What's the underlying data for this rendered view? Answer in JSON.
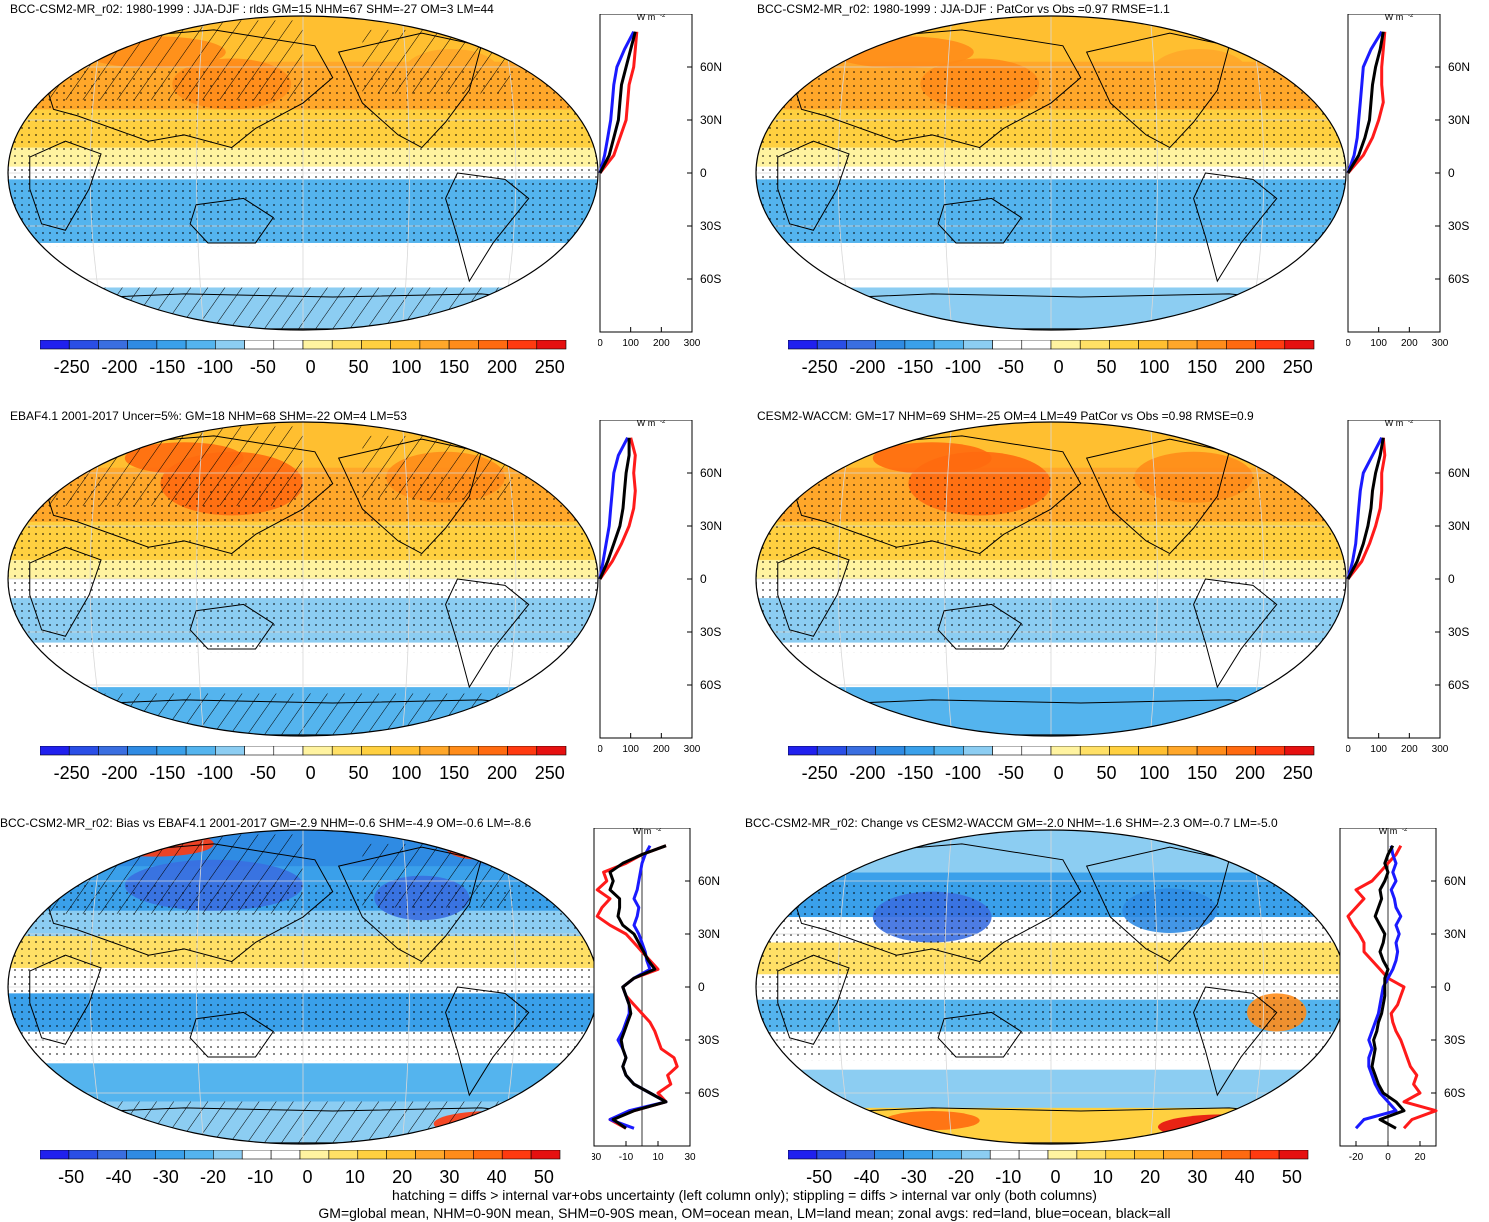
{
  "footnotes": [
    "hatching = diffs > internal var+obs uncertainty (left column only); stippling = diffs > internal var only (both columns)",
    "GM=global mean, NHM=0-90N mean, SHM=0-90S mean, OM=ocean mean, LM=land mean; zonal avgs: red=land, blue=ocean, black=all"
  ],
  "colors": {
    "land": "#ff1a1a",
    "ocean": "#1a1aff",
    "all": "#000000",
    "palette": [
      "#2020ee",
      "#2a4ee6",
      "#3a6ee0",
      "#2f8be3",
      "#3aa0ea",
      "#54b4ee",
      "#8ccdf2",
      "#ffffff",
      "#ffffff",
      "#fff3a0",
      "#ffe066",
      "#ffd040",
      "#ffbf30",
      "#ffa72a",
      "#ff8c1a",
      "#ff6a10",
      "#ff3a10",
      "#e61010"
    ]
  },
  "panels": [
    {
      "id": "p1",
      "title": "BCC-CSM2-MR_r02: 1980-1999 : JJA-DJF : rlds GM=15 NHM=67 SHM=-27 OM=3 LM=44",
      "mean_type": "mean",
      "hatch": true,
      "style": "model",
      "unit_label": "W m",
      "colorbar_labels": [
        "-250",
        "-200",
        "-150",
        "-100",
        "-50",
        "0",
        "50",
        "100",
        "150",
        "200",
        "250"
      ],
      "chart_data": {
        "type": "line",
        "xlim": [
          0,
          300
        ],
        "xticks": [
          "0",
          "100",
          "200",
          "300"
        ],
        "ylim": [
          -90,
          90
        ],
        "yticks": [
          "60N",
          "30N",
          "0",
          "30S",
          "60S"
        ],
        "series": [
          {
            "name": "land",
            "lat": [
              0,
              10,
              20,
              30,
              40,
              50,
              60,
              70,
              80
            ],
            "values": [
              0,
              45,
              65,
              85,
              90,
              95,
              110,
              115,
              120
            ]
          },
          {
            "name": "ocean",
            "lat": [
              0,
              10,
              20,
              30,
              40,
              50,
              60,
              70,
              80
            ],
            "values": [
              0,
              15,
              25,
              35,
              40,
              45,
              55,
              80,
              110
            ]
          },
          {
            "name": "all",
            "lat": [
              0,
              10,
              20,
              30,
              40,
              50,
              60,
              70,
              80
            ],
            "values": [
              0,
              30,
              45,
              60,
              65,
              70,
              85,
              100,
              115
            ]
          }
        ]
      }
    },
    {
      "id": "p2",
      "title": "BCC-CSM2-MR_r02: 1980-1999 : JJA-DJF : PatCor vs Obs =0.97 RMSE=1.1",
      "mean_type": "mean",
      "hatch": false,
      "style": "model",
      "unit_label": "W m",
      "colorbar_labels": [
        "-250",
        "-200",
        "-150",
        "-100",
        "-50",
        "0",
        "50",
        "100",
        "150",
        "200",
        "250"
      ],
      "chart_data": {
        "type": "line",
        "xlim": [
          0,
          300
        ],
        "xticks": [
          "0",
          "100",
          "200",
          "300"
        ],
        "ylim": [
          -90,
          90
        ],
        "yticks": [
          "60N",
          "30N",
          "0",
          "30S",
          "60S"
        ],
        "series": [
          {
            "name": "land",
            "lat": [
              0,
              10,
              20,
              30,
              40,
              50,
              60,
              70,
              80
            ],
            "values": [
              0,
              50,
              80,
              100,
              115,
              110,
              110,
              115,
              120
            ]
          },
          {
            "name": "ocean",
            "lat": [
              0,
              10,
              20,
              30,
              40,
              50,
              60,
              70,
              80
            ],
            "values": [
              0,
              20,
              30,
              35,
              40,
              45,
              50,
              75,
              110
            ]
          },
          {
            "name": "all",
            "lat": [
              0,
              10,
              20,
              30,
              40,
              50,
              60,
              70,
              80
            ],
            "values": [
              0,
              35,
              55,
              70,
              75,
              80,
              90,
              105,
              115
            ]
          }
        ]
      }
    },
    {
      "id": "p3",
      "title": "EBAF4.1 2001-2017 Uncer=5%: GM=18 NHM=68 SHM=-22 OM=4 LM=53",
      "mean_type": "mean",
      "hatch": true,
      "style": "obs",
      "unit_label": "W m",
      "colorbar_labels": [
        "-250",
        "-200",
        "-150",
        "-100",
        "-50",
        "0",
        "50",
        "100",
        "150",
        "200",
        "250"
      ],
      "chart_data": {
        "type": "line",
        "xlim": [
          0,
          300
        ],
        "xticks": [
          "0",
          "100",
          "200",
          "300"
        ],
        "ylim": [
          -90,
          90
        ],
        "yticks": [
          "60N",
          "30N",
          "0",
          "30S",
          "60S"
        ],
        "series": [
          {
            "name": "land",
            "lat": [
              0,
              10,
              20,
              30,
              40,
              50,
              60,
              70,
              80
            ],
            "values": [
              0,
              40,
              70,
              95,
              110,
              115,
              110,
              115,
              100
            ]
          },
          {
            "name": "ocean",
            "lat": [
              0,
              10,
              20,
              30,
              40,
              50,
              60,
              70,
              80
            ],
            "values": [
              0,
              10,
              20,
              30,
              35,
              40,
              45,
              60,
              90
            ]
          },
          {
            "name": "all",
            "lat": [
              0,
              10,
              20,
              30,
              40,
              50,
              60,
              70,
              80
            ],
            "values": [
              0,
              25,
              45,
              65,
              75,
              80,
              85,
              95,
              95
            ]
          }
        ]
      }
    },
    {
      "id": "p4",
      "title": "CESM2-WACCM: GM=17 NHM=69 SHM=-25 OM=4 LM=49 PatCor vs Obs =0.98 RMSE=0.9",
      "mean_type": "mean",
      "hatch": false,
      "style": "obs",
      "unit_label": "W m",
      "colorbar_labels": [
        "-250",
        "-200",
        "-150",
        "-100",
        "-50",
        "0",
        "50",
        "100",
        "150",
        "200",
        "250"
      ],
      "chart_data": {
        "type": "line",
        "xlim": [
          0,
          300
        ],
        "xticks": [
          "0",
          "100",
          "200",
          "300"
        ],
        "ylim": [
          -90,
          90
        ],
        "yticks": [
          "60N",
          "30N",
          "0",
          "30S",
          "60S"
        ],
        "series": [
          {
            "name": "land",
            "lat": [
              0,
              10,
              20,
              30,
              40,
              50,
              60,
              70,
              80
            ],
            "values": [
              0,
              45,
              70,
              90,
              105,
              110,
              110,
              120,
              115
            ]
          },
          {
            "name": "ocean",
            "lat": [
              0,
              10,
              20,
              30,
              40,
              50,
              60,
              70,
              80
            ],
            "values": [
              0,
              15,
              25,
              30,
              35,
              40,
              50,
              80,
              110
            ]
          },
          {
            "name": "all",
            "lat": [
              0,
              10,
              20,
              30,
              40,
              50,
              60,
              70,
              80
            ],
            "values": [
              0,
              30,
              50,
              65,
              75,
              80,
              90,
              105,
              115
            ]
          }
        ]
      }
    },
    {
      "id": "p5",
      "title": "BCC-CSM2-MR_r02: Bias vs EBAF4.1 2001-2017 GM=-2.9 NHM=-0.6 SHM=-4.9 OM=-0.6 LM=-8.6",
      "mean_type": "diff",
      "hatch": true,
      "style": "bias",
      "unit_label": "W m",
      "colorbar_labels": [
        "-50",
        "-40",
        "-30",
        "-20",
        "-10",
        "0",
        "10",
        "20",
        "30",
        "40",
        "50"
      ],
      "chart_data": {
        "type": "line",
        "xlim": [
          -30,
          30
        ],
        "xticks": [
          "-30",
          "-10",
          "10",
          "30"
        ],
        "ylim": [
          -90,
          90
        ],
        "yticks": [
          "60N",
          "30N",
          "0",
          "30S",
          "60S"
        ],
        "series": [
          {
            "name": "land",
            "lat": [
              -80,
              -75,
              -70,
              -65,
              -60,
              -55,
              -50,
              -45,
              -40,
              -35,
              -30,
              -25,
              -20,
              -15,
              -10,
              -5,
              0,
              5,
              10,
              15,
              20,
              25,
              30,
              35,
              40,
              45,
              50,
              55,
              60,
              65,
              70,
              75,
              80
            ],
            "values": [
              -10,
              -20,
              -5,
              15,
              10,
              18,
              16,
              22,
              20,
              12,
              10,
              8,
              5,
              0,
              -5,
              -10,
              -12,
              -5,
              10,
              5,
              0,
              -5,
              -10,
              -20,
              -28,
              -25,
              -20,
              -28,
              -22,
              -24,
              -10,
              0,
              15
            ]
          },
          {
            "name": "ocean",
            "lat": [
              -80,
              -75,
              -70,
              -65,
              -60,
              -55,
              -50,
              -45,
              -40,
              -35,
              -30,
              -25,
              -20,
              -15,
              -10,
              -5,
              0,
              5,
              10,
              15,
              20,
              25,
              30,
              35,
              40,
              45,
              50,
              55,
              60,
              65,
              70,
              75,
              80
            ],
            "values": [
              -5,
              -20,
              -8,
              15,
              5,
              -5,
              -10,
              -12,
              -10,
              -12,
              -15,
              -12,
              -10,
              -8,
              -8,
              -10,
              -12,
              -5,
              5,
              3,
              2,
              0,
              -2,
              -5,
              -3,
              -2,
              -5,
              -3,
              -2,
              -1,
              0,
              2,
              5
            ]
          },
          {
            "name": "all",
            "lat": [
              -80,
              -75,
              -70,
              -65,
              -60,
              -55,
              -50,
              -45,
              -40,
              -35,
              -30,
              -25,
              -20,
              -15,
              -10,
              -5,
              0,
              5,
              10,
              15,
              20,
              25,
              30,
              35,
              40,
              45,
              50,
              55,
              60,
              65,
              70,
              75,
              80
            ],
            "values": [
              -10,
              -18,
              -5,
              15,
              5,
              -5,
              -10,
              -12,
              -10,
              -12,
              -13,
              -11,
              -9,
              -7,
              -8,
              -10,
              -12,
              -5,
              8,
              4,
              1,
              -2,
              -5,
              -12,
              -15,
              -14,
              -14,
              -20,
              -18,
              -20,
              -12,
              0,
              15
            ]
          }
        ]
      }
    },
    {
      "id": "p6",
      "title": "BCC-CSM2-MR_r02: Change vs CESM2-WACCM GM=-2.0 NHM=-1.6 SHM=-2.3 OM=-0.7 LM=-5.0",
      "mean_type": "diff",
      "hatch": false,
      "style": "change",
      "unit_label": "W m",
      "colorbar_labels": [
        "-50",
        "-40",
        "-30",
        "-20",
        "-10",
        "0",
        "10",
        "20",
        "30",
        "40",
        "50"
      ],
      "chart_data": {
        "type": "line",
        "xlim": [
          -30,
          30
        ],
        "xticks": [
          "-20",
          "0",
          "20"
        ],
        "ylim": [
          -90,
          90
        ],
        "yticks": [
          "60N",
          "30N",
          "0",
          "30S",
          "60S"
        ],
        "series": [
          {
            "name": "land",
            "lat": [
              -80,
              -75,
              -70,
              -65,
              -60,
              -55,
              -50,
              -45,
              -40,
              -35,
              -30,
              -25,
              -20,
              -15,
              -10,
              -5,
              0,
              5,
              10,
              15,
              20,
              25,
              30,
              35,
              40,
              45,
              50,
              55,
              60,
              65,
              70,
              75,
              80
            ],
            "values": [
              10,
              15,
              30,
              10,
              20,
              16,
              18,
              14,
              12,
              10,
              8,
              5,
              3,
              2,
              6,
              8,
              10,
              0,
              -5,
              -10,
              -15,
              -15,
              -18,
              -22,
              -25,
              -20,
              -15,
              -20,
              -10,
              -5,
              0,
              5,
              8
            ]
          },
          {
            "name": "ocean",
            "lat": [
              -80,
              -75,
              -70,
              -65,
              -60,
              -55,
              -50,
              -45,
              -40,
              -35,
              -30,
              -25,
              -20,
              -15,
              -10,
              -5,
              0,
              5,
              10,
              15,
              20,
              25,
              30,
              35,
              40,
              45,
              50,
              55,
              60,
              65,
              70,
              75,
              80
            ],
            "values": [
              -20,
              -15,
              5,
              0,
              -5,
              -8,
              -10,
              -12,
              -12,
              -10,
              -12,
              -10,
              -8,
              -6,
              -5,
              -4,
              -3,
              0,
              3,
              5,
              6,
              5,
              7,
              5,
              8,
              5,
              4,
              2,
              5,
              3,
              5,
              3,
              2
            ]
          },
          {
            "name": "all",
            "lat": [
              -80,
              -75,
              -70,
              -65,
              -60,
              -55,
              -50,
              -45,
              -40,
              -35,
              -30,
              -25,
              -20,
              -15,
              -10,
              -5,
              0,
              5,
              10,
              15,
              20,
              25,
              30,
              35,
              40,
              45,
              50,
              55,
              60,
              65,
              70,
              75,
              80
            ],
            "values": [
              5,
              -5,
              10,
              5,
              -3,
              -6,
              -8,
              -10,
              -9,
              -8,
              -9,
              -7,
              -6,
              -4,
              -3,
              -2,
              -2,
              -2,
              0,
              -3,
              -5,
              -3,
              -2,
              -5,
              -8,
              -6,
              -4,
              -5,
              -2,
              0,
              -2,
              0,
              3
            ]
          }
        ]
      }
    }
  ]
}
